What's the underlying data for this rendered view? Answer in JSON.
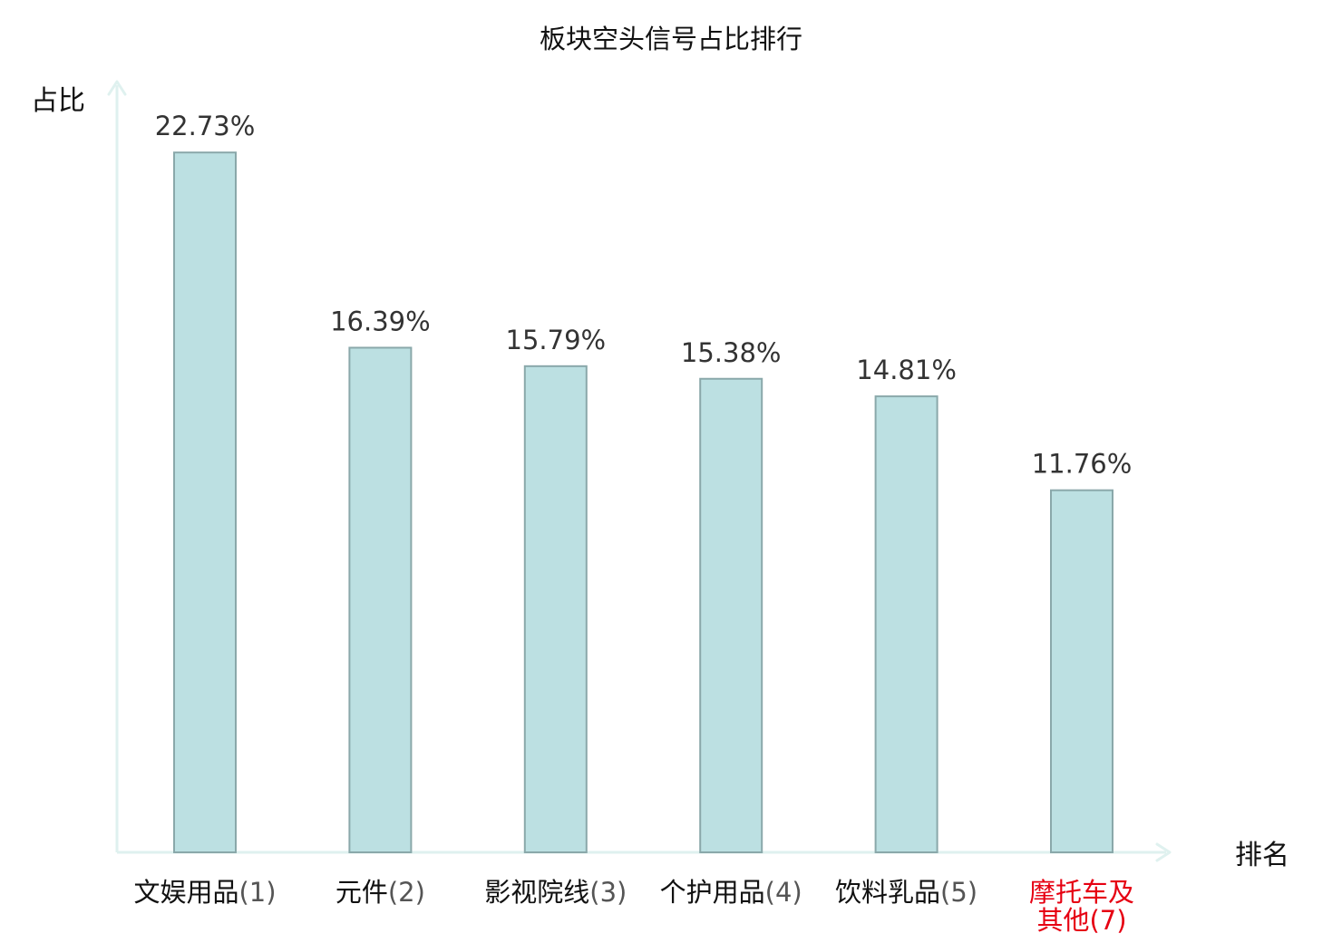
{
  "chart_data": {
    "type": "bar",
    "title": "板块空头信号占比排行",
    "xlabel": "排名",
    "ylabel": "占比",
    "categories": [
      {
        "name": "文娱用品",
        "rank": "(1)",
        "highlight": false
      },
      {
        "name": "元件",
        "rank": "(2)",
        "highlight": false
      },
      {
        "name": "影视院线",
        "rank": "(3)",
        "highlight": false
      },
      {
        "name": "个护用品",
        "rank": "(4)",
        "highlight": false
      },
      {
        "name": "饮料乳品",
        "rank": "(5)",
        "highlight": false
      },
      {
        "name_lines": [
          "摩托车及",
          "其他"
        ],
        "rank": "(7)",
        "highlight": true
      }
    ],
    "values": [
      22.73,
      16.39,
      15.79,
      15.38,
      14.81,
      11.76
    ],
    "value_labels": [
      "22.73%",
      "16.39%",
      "15.79%",
      "15.38%",
      "14.81%",
      "11.76%"
    ],
    "ylim": [
      0,
      25
    ],
    "grid": false,
    "legend": "none"
  },
  "colors": {
    "bar_fill": "#bce0e2",
    "bar_stroke": "#8aa8aa",
    "axis": "#dff1ef",
    "highlight_label": "#e60012",
    "normal_label": "#111111"
  }
}
